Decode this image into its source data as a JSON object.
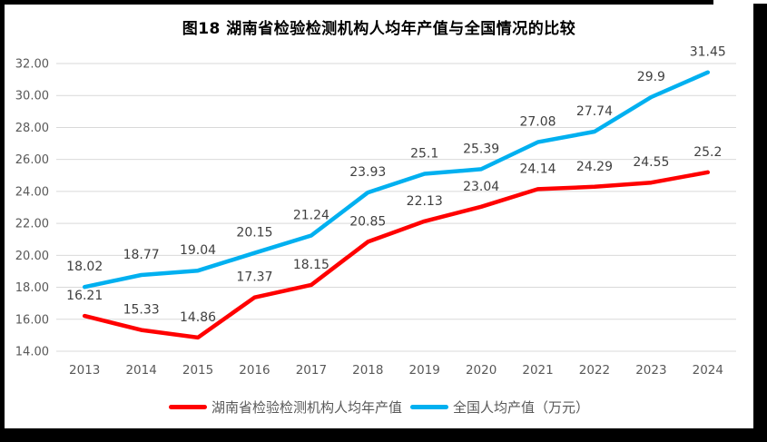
{
  "title": "图18 湖南省检验检测机构人均年产值与全国情况的比较",
  "chart_data": {
    "type": "line",
    "categories": [
      "2013",
      "2014",
      "2015",
      "2016",
      "2017",
      "2018",
      "2019",
      "2020",
      "2021",
      "2022",
      "2023",
      "2024"
    ],
    "series": [
      {
        "name": "湖南省检验检测机构人均年产值",
        "color": "#FF0000",
        "values": [
          16.21,
          15.33,
          14.86,
          17.37,
          18.15,
          20.85,
          22.13,
          23.04,
          24.14,
          24.29,
          24.55,
          25.2
        ],
        "labels": [
          "16.21",
          "15.33",
          "14.86",
          "17.37",
          "18.15",
          "20.85",
          "22.13",
          "23.04",
          "24.14",
          "24.29",
          "24.55",
          "25.2"
        ]
      },
      {
        "name": "全国人均产值（万元）",
        "color": "#00B0F0",
        "values": [
          18.02,
          18.77,
          19.04,
          20.15,
          21.24,
          23.93,
          25.1,
          25.39,
          27.08,
          27.74,
          29.9,
          31.45
        ],
        "labels": [
          "18.02",
          "18.77",
          "19.04",
          "20.15",
          "21.24",
          "23.93",
          "25.1",
          "25.39",
          "27.08",
          "27.74",
          "29.9",
          "31.45"
        ]
      }
    ],
    "ylim": [
      14,
      32
    ],
    "yticks": [
      {
        "value": 14,
        "label": "14.00"
      },
      {
        "value": 16,
        "label": "16.00"
      },
      {
        "value": 18,
        "label": "18.00"
      },
      {
        "value": 20,
        "label": "20.00"
      },
      {
        "value": 22,
        "label": "22.00"
      },
      {
        "value": 24,
        "label": "24.00"
      },
      {
        "value": 26,
        "label": "26.00"
      },
      {
        "value": 28,
        "label": "28.00"
      },
      {
        "value": 30,
        "label": "30.00"
      },
      {
        "value": 32,
        "label": "32.00"
      }
    ],
    "xlabel": "",
    "ylabel": "",
    "grid": true,
    "legend_position": "bottom"
  },
  "style_colors": {
    "gridline": "#D9D9D9",
    "axis_label": "#595959",
    "data_label": "#404040",
    "frame": "#000000"
  }
}
